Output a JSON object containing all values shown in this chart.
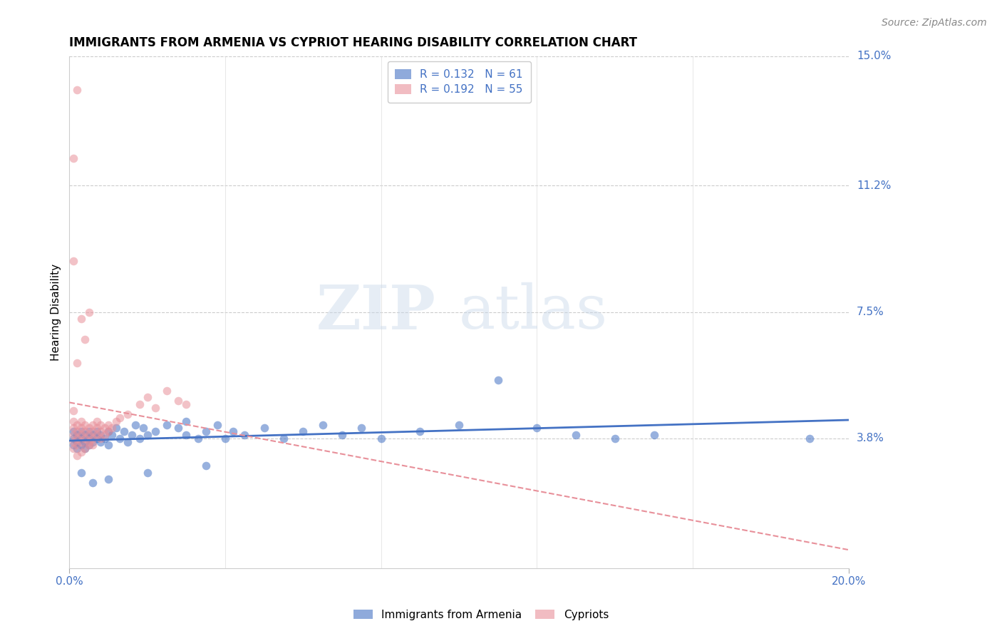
{
  "title": "IMMIGRANTS FROM ARMENIA VS CYPRIOT HEARING DISABILITY CORRELATION CHART",
  "source": "Source: ZipAtlas.com",
  "ylabel": "Hearing Disability",
  "watermark_zip": "ZIP",
  "watermark_atlas": "atlas",
  "xlim": [
    0.0,
    0.2
  ],
  "ylim": [
    0.0,
    0.15
  ],
  "ytick_positions": [
    0.038,
    0.075,
    0.112,
    0.15
  ],
  "ytick_labels": [
    "3.8%",
    "7.5%",
    "11.2%",
    "15.0%"
  ],
  "armenia_line_color": "#4472c4",
  "cypriot_line_color": "#e8909a",
  "scatter_alpha": 0.55,
  "scatter_size": 70,
  "grid_color": "#cccccc",
  "background_color": "#ffffff",
  "title_fontsize": 12,
  "axis_label_fontsize": 11,
  "tick_fontsize": 11,
  "legend_fontsize": 11,
  "source_fontsize": 10,
  "armenia_scatter": [
    [
      0.001,
      0.038
    ],
    [
      0.001,
      0.04
    ],
    [
      0.001,
      0.036
    ],
    [
      0.002,
      0.039
    ],
    [
      0.002,
      0.037
    ],
    [
      0.002,
      0.035
    ],
    [
      0.003,
      0.038
    ],
    [
      0.003,
      0.04
    ],
    [
      0.003,
      0.036
    ],
    [
      0.004,
      0.037
    ],
    [
      0.004,
      0.039
    ],
    [
      0.004,
      0.035
    ],
    [
      0.005,
      0.038
    ],
    [
      0.005,
      0.04
    ],
    [
      0.005,
      0.036
    ],
    [
      0.006,
      0.039
    ],
    [
      0.006,
      0.037
    ],
    [
      0.007,
      0.038
    ],
    [
      0.007,
      0.04
    ],
    [
      0.008,
      0.037
    ],
    [
      0.008,
      0.039
    ],
    [
      0.009,
      0.038
    ],
    [
      0.01,
      0.04
    ],
    [
      0.01,
      0.036
    ],
    [
      0.011,
      0.039
    ],
    [
      0.012,
      0.041
    ],
    [
      0.013,
      0.038
    ],
    [
      0.014,
      0.04
    ],
    [
      0.015,
      0.037
    ],
    [
      0.016,
      0.039
    ],
    [
      0.017,
      0.042
    ],
    [
      0.018,
      0.038
    ],
    [
      0.019,
      0.041
    ],
    [
      0.02,
      0.039
    ],
    [
      0.022,
      0.04
    ],
    [
      0.025,
      0.042
    ],
    [
      0.028,
      0.041
    ],
    [
      0.03,
      0.039
    ],
    [
      0.03,
      0.043
    ],
    [
      0.033,
      0.038
    ],
    [
      0.035,
      0.04
    ],
    [
      0.038,
      0.042
    ],
    [
      0.04,
      0.038
    ],
    [
      0.042,
      0.04
    ],
    [
      0.045,
      0.039
    ],
    [
      0.05,
      0.041
    ],
    [
      0.055,
      0.038
    ],
    [
      0.06,
      0.04
    ],
    [
      0.065,
      0.042
    ],
    [
      0.07,
      0.039
    ],
    [
      0.075,
      0.041
    ],
    [
      0.08,
      0.038
    ],
    [
      0.09,
      0.04
    ],
    [
      0.1,
      0.042
    ],
    [
      0.11,
      0.055
    ],
    [
      0.12,
      0.041
    ],
    [
      0.13,
      0.039
    ],
    [
      0.14,
      0.038
    ],
    [
      0.15,
      0.039
    ],
    [
      0.19,
      0.038
    ],
    [
      0.003,
      0.028
    ],
    [
      0.006,
      0.025
    ],
    [
      0.01,
      0.026
    ],
    [
      0.02,
      0.028
    ],
    [
      0.035,
      0.03
    ]
  ],
  "cypriot_scatter": [
    [
      0.001,
      0.035
    ],
    [
      0.001,
      0.037
    ],
    [
      0.001,
      0.039
    ],
    [
      0.001,
      0.041
    ],
    [
      0.001,
      0.043
    ],
    [
      0.001,
      0.09
    ],
    [
      0.001,
      0.12
    ],
    [
      0.001,
      0.046
    ],
    [
      0.002,
      0.036
    ],
    [
      0.002,
      0.038
    ],
    [
      0.002,
      0.04
    ],
    [
      0.002,
      0.042
    ],
    [
      0.002,
      0.06
    ],
    [
      0.002,
      0.14
    ],
    [
      0.002,
      0.033
    ],
    [
      0.003,
      0.037
    ],
    [
      0.003,
      0.039
    ],
    [
      0.003,
      0.041
    ],
    [
      0.003,
      0.043
    ],
    [
      0.003,
      0.073
    ],
    [
      0.003,
      0.034
    ],
    [
      0.004,
      0.038
    ],
    [
      0.004,
      0.04
    ],
    [
      0.004,
      0.042
    ],
    [
      0.004,
      0.067
    ],
    [
      0.004,
      0.035
    ],
    [
      0.005,
      0.037
    ],
    [
      0.005,
      0.039
    ],
    [
      0.005,
      0.041
    ],
    [
      0.005,
      0.075
    ],
    [
      0.005,
      0.036
    ],
    [
      0.006,
      0.038
    ],
    [
      0.006,
      0.04
    ],
    [
      0.006,
      0.042
    ],
    [
      0.006,
      0.036
    ],
    [
      0.007,
      0.039
    ],
    [
      0.007,
      0.041
    ],
    [
      0.007,
      0.043
    ],
    [
      0.008,
      0.038
    ],
    [
      0.008,
      0.04
    ],
    [
      0.008,
      0.042
    ],
    [
      0.009,
      0.039
    ],
    [
      0.009,
      0.041
    ],
    [
      0.01,
      0.04
    ],
    [
      0.01,
      0.042
    ],
    [
      0.011,
      0.041
    ],
    [
      0.012,
      0.043
    ],
    [
      0.013,
      0.044
    ],
    [
      0.015,
      0.045
    ],
    [
      0.018,
      0.048
    ],
    [
      0.02,
      0.05
    ],
    [
      0.022,
      0.047
    ],
    [
      0.025,
      0.052
    ],
    [
      0.028,
      0.049
    ],
    [
      0.03,
      0.048
    ]
  ]
}
